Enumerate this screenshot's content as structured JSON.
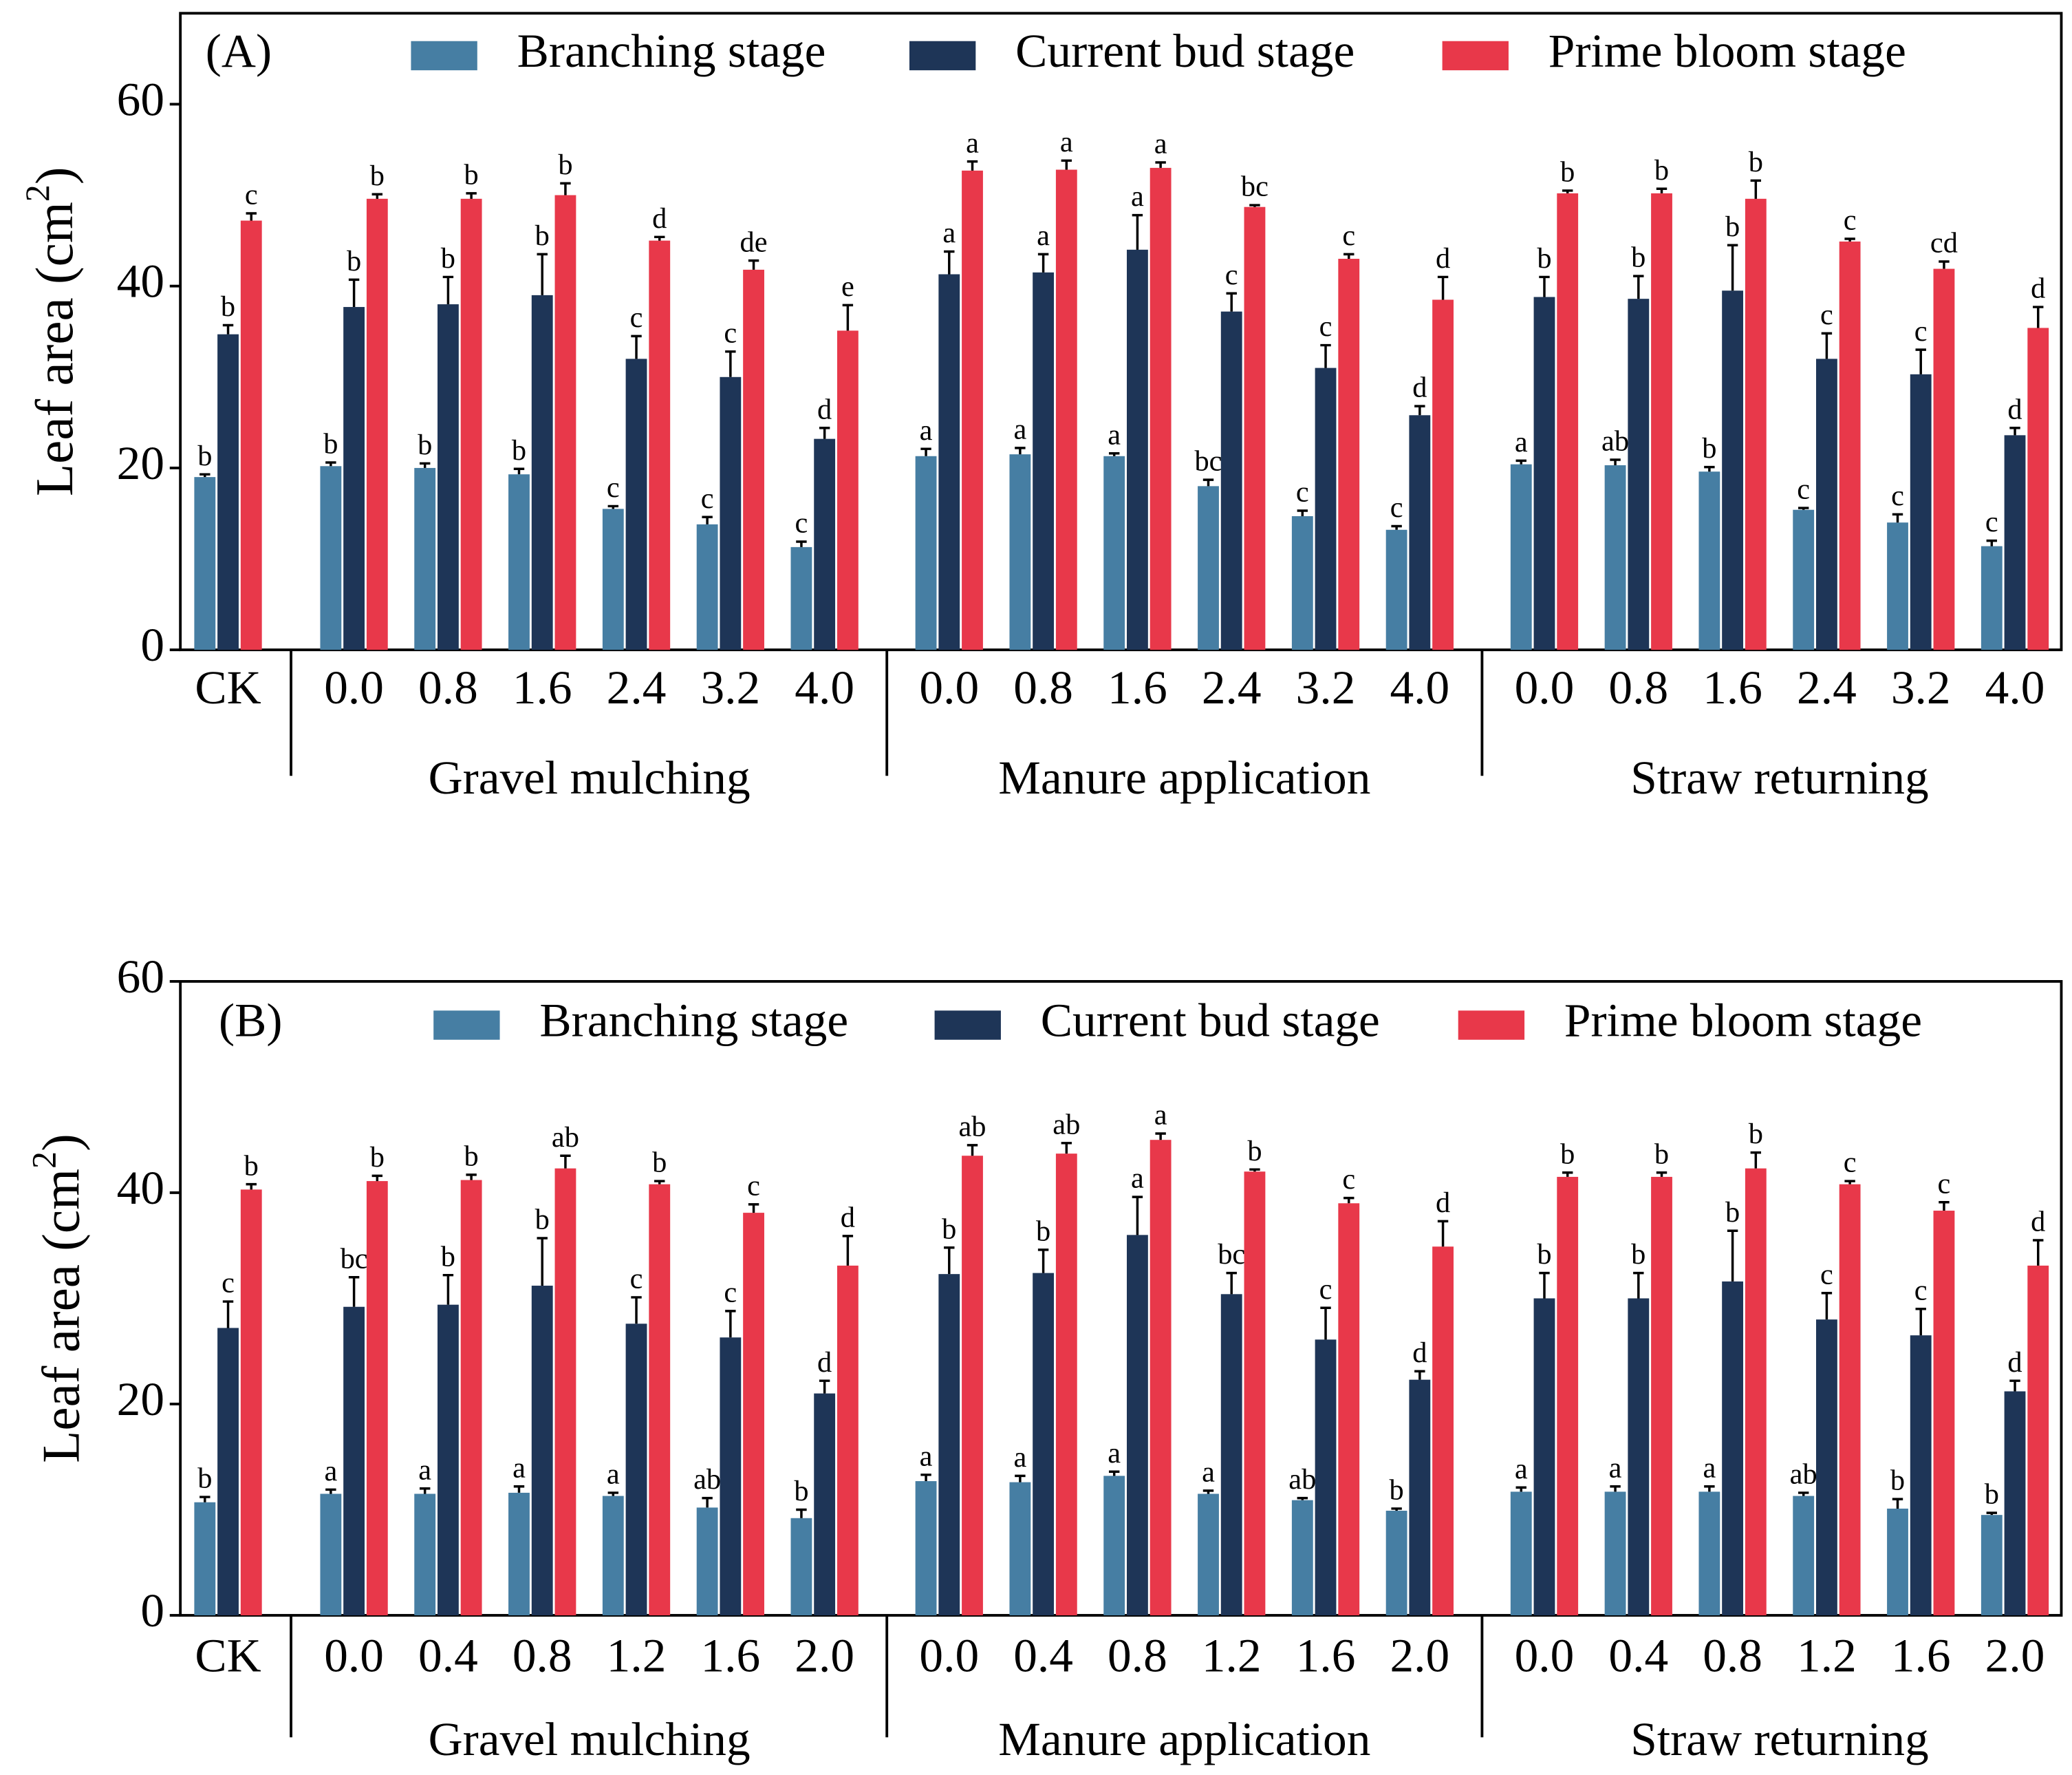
{
  "chart_data": [
    {
      "type": "bar",
      "title": "(A)",
      "y_label": [
        "Leaf area (cm",
        "2",
        ")"
      ],
      "categories": [
        "CK",
        "0.0",
        "0.8",
        "1.6",
        "2.4",
        "3.2",
        "4.0",
        "0.0",
        "0.8",
        "1.6",
        "2.4",
        "3.2",
        "4.0",
        "0.0",
        "0.8",
        "1.6",
        "2.4",
        "3.2",
        "4.0"
      ],
      "groups": [
        "Gravel mulching",
        "Manure application",
        "Straw returning"
      ],
      "ylim": [
        0,
        70
      ],
      "yticks": [
        0,
        20,
        40,
        60
      ],
      "series": [
        {
          "name": "Branching stage",
          "color": "#467ea3",
          "values": [
            19,
            20.2,
            20,
            19.3,
            15.5,
            13.8,
            11.3,
            21.3,
            21.5,
            21.3,
            18,
            14.7,
            13.2,
            20.4,
            20.3,
            19.6,
            15.4,
            14,
            11.4
          ],
          "errors": [
            0.3,
            0.4,
            0.5,
            0.6,
            0.3,
            0.8,
            0.6,
            0.8,
            0.7,
            0.3,
            0.7,
            0.6,
            0.4,
            0.4,
            0.6,
            0.5,
            0.2,
            0.9,
            0.6
          ],
          "significance": [
            "b",
            "b",
            "b",
            "b",
            "c",
            "c",
            "c",
            "a",
            "a",
            "a",
            "bc",
            "c",
            "c",
            "a",
            "ab",
            "b",
            "c",
            "c",
            "c"
          ]
        },
        {
          "name": "Current bud stage",
          "color": "#1e3557",
          "values": [
            34.7,
            37.7,
            38,
            39,
            32,
            30,
            23.2,
            41.3,
            41.5,
            44,
            37.2,
            31,
            25.8,
            38.8,
            38.6,
            39.5,
            32,
            30.3,
            23.6
          ],
          "errors": [
            1,
            3,
            3,
            4.5,
            2.5,
            2.8,
            1.2,
            2.5,
            2,
            3.8,
            2,
            2.5,
            1,
            2.2,
            2.5,
            5,
            2.8,
            2.7,
            0.8
          ],
          "significance": [
            "b",
            "b",
            "b",
            "b",
            "c",
            "c",
            "d",
            "a",
            "a",
            "a",
            "c",
            "c",
            "d",
            "b",
            "b",
            "b",
            "c",
            "c",
            "d"
          ]
        },
        {
          "name": "Prime bloom stage",
          "color": "#e8384a",
          "values": [
            47.2,
            49.6,
            49.6,
            50,
            45,
            41.8,
            35.1,
            52.7,
            52.8,
            53,
            48.7,
            43,
            38.5,
            50.2,
            50.2,
            49.6,
            44.9,
            41.9,
            35.4
          ],
          "errors": [
            0.8,
            0.5,
            0.6,
            1.3,
            0.4,
            1,
            2.8,
            1,
            1,
            0.6,
            0.2,
            0.5,
            2.5,
            0.3,
            0.5,
            2,
            0.3,
            0.8,
            2.3
          ],
          "significance": [
            "c",
            "b",
            "b",
            "b",
            "d",
            "de",
            "e",
            "a",
            "a",
            "a",
            "bc",
            "c",
            "d",
            "b",
            "b",
            "b",
            "c",
            "cd",
            "d"
          ]
        }
      ]
    },
    {
      "type": "bar",
      "title": "(B)",
      "y_label": [
        "Leaf area (cm",
        "2",
        ")"
      ],
      "categories": [
        "CK",
        "0.0",
        "0.4",
        "0.8",
        "1.2",
        "1.6",
        "2.0",
        "0.0",
        "0.4",
        "0.8",
        "1.2",
        "1.6",
        "2.0",
        "0.0",
        "0.4",
        "0.8",
        "1.2",
        "1.6",
        "2.0"
      ],
      "groups": [
        "Gravel mulching",
        "Manure application",
        "Straw returning"
      ],
      "ylim": [
        0,
        60
      ],
      "yticks": [
        0,
        20,
        40,
        60
      ],
      "series": [
        {
          "name": "Branching stage",
          "color": "#467ea3",
          "values": [
            10.7,
            11.5,
            11.5,
            11.6,
            11.3,
            10.2,
            9.2,
            12.7,
            12.6,
            13.2,
            11.5,
            10.9,
            9.9,
            11.7,
            11.7,
            11.7,
            11.3,
            10.1,
            9.5
          ],
          "errors": [
            0.5,
            0.4,
            0.5,
            0.6,
            0.3,
            0.9,
            0.8,
            0.6,
            0.6,
            0.4,
            0.3,
            0.2,
            0.2,
            0.4,
            0.5,
            0.5,
            0.3,
            0.9,
            0.2
          ],
          "significance": [
            "b",
            "a",
            "a",
            "a",
            "a",
            "ab",
            "b",
            "a",
            "a",
            "a",
            "a",
            "ab",
            "b",
            "a",
            "a",
            "a",
            "ab",
            "b",
            "b"
          ]
        },
        {
          "name": "Current bud stage",
          "color": "#1e3557",
          "values": [
            27.2,
            29.2,
            29.4,
            31.2,
            27.6,
            26.3,
            21,
            32.3,
            32.4,
            36,
            30.4,
            26.1,
            22.3,
            30,
            30,
            31.6,
            28,
            26.5,
            21.2
          ],
          "errors": [
            2.5,
            2.8,
            2.8,
            4.5,
            2.5,
            2.5,
            1.2,
            2.5,
            2.2,
            3.6,
            2,
            3,
            0.8,
            2.4,
            2.4,
            4.8,
            2.5,
            2.5,
            1
          ],
          "significance": [
            "c",
            "bc",
            "b",
            "b",
            "c",
            "c",
            "d",
            "b",
            "b",
            "a",
            "bc",
            "c",
            "d",
            "b",
            "b",
            "b",
            "c",
            "c",
            "d"
          ]
        },
        {
          "name": "Prime bloom stage",
          "color": "#e8384a",
          "values": [
            40.3,
            41.1,
            41.2,
            42.3,
            40.8,
            38.1,
            33.1,
            43.5,
            43.7,
            45,
            42,
            39,
            34.9,
            41.5,
            41.5,
            42.3,
            40.8,
            38.3,
            33.1
          ],
          "errors": [
            0.5,
            0.5,
            0.5,
            1.2,
            0.3,
            0.8,
            2.8,
            1,
            1,
            0.6,
            0.2,
            0.5,
            2.4,
            0.4,
            0.4,
            1.5,
            0.3,
            0.8,
            2.4
          ],
          "significance": [
            "b",
            "b",
            "b",
            "ab",
            "b",
            "c",
            "d",
            "ab",
            "ab",
            "a",
            "b",
            "c",
            "d",
            "b",
            "b",
            "b",
            "c",
            "c",
            "d"
          ]
        }
      ]
    }
  ]
}
